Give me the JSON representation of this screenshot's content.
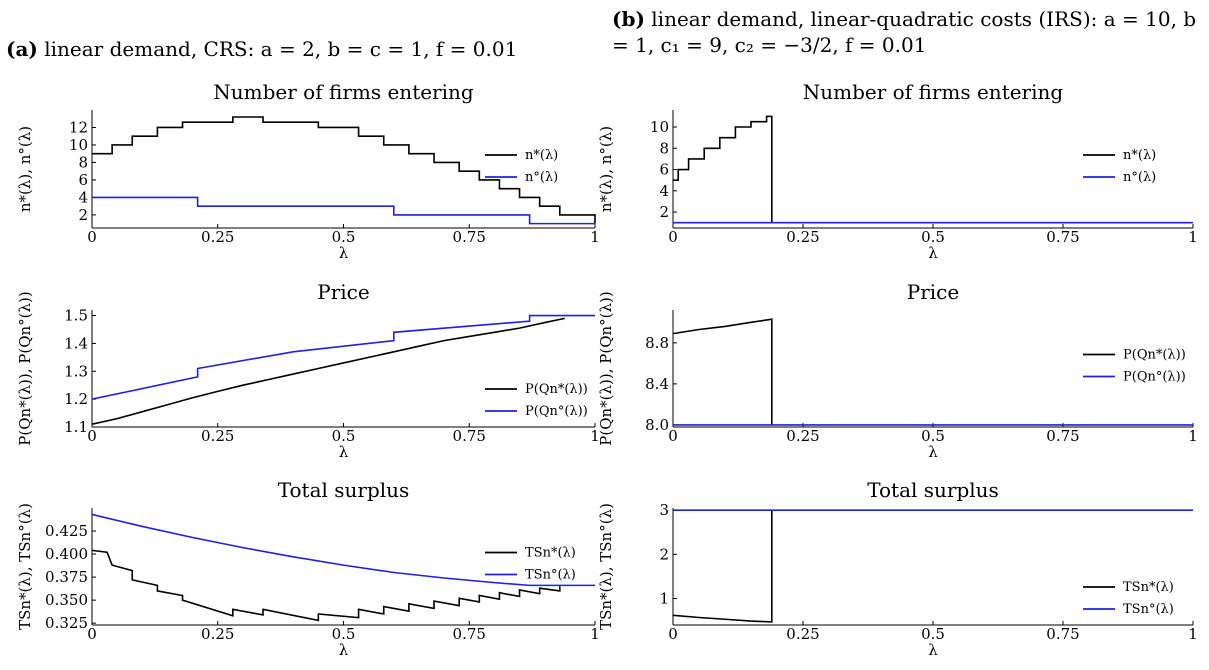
{
  "captions": {
    "a": {
      "tag": "(a)",
      "text": "linear demand, CRS: a = 2, b = c = 1, f = 0.01"
    },
    "b": {
      "tag": "(b)",
      "text": "linear demand, linear-quadratic costs (IRS): a = 10, b = 1, c₁ = 9, c₂ = −3/2, f = 0.01"
    }
  },
  "colors": {
    "star": "#000000",
    "opt": "#1f1fe6"
  },
  "chart_data": [
    {
      "id": "a-firms",
      "type": "line",
      "title": "Number of firms entering",
      "xlabel": "λ",
      "ylabel": "n*(λ),  n°(λ)",
      "xlim": [
        0,
        1
      ],
      "ylim": [
        0.5,
        14
      ],
      "xticks": [
        0,
        0.25,
        0.5,
        0.75,
        1
      ],
      "xtick_labels": [
        "0",
        "0.25",
        "0.5",
        "0.75",
        "1"
      ],
      "yticks": [
        2,
        4,
        6,
        8,
        10,
        12
      ],
      "ytick_labels": [
        "2",
        "4",
        "6",
        "8",
        "10",
        "12"
      ],
      "legend": "right",
      "legend_labels": [
        "n*(λ)",
        "n°(λ)"
      ],
      "series": [
        {
          "name": "n*(λ)",
          "color": "#000000",
          "step": true,
          "x": [
            0,
            0.04,
            0.08,
            0.13,
            0.18,
            0.28,
            0.34,
            0.45,
            0.53,
            0.58,
            0.63,
            0.68,
            0.73,
            0.77,
            0.81,
            0.85,
            0.89,
            0.93,
            1.0
          ],
          "y": [
            9,
            10,
            11,
            12,
            12.6,
            13.2,
            12.6,
            12,
            11,
            10,
            9,
            8,
            7,
            6,
            5,
            4,
            3,
            2,
            1
          ]
        },
        {
          "name": "n°(λ)",
          "color": "#1f1fe6",
          "step": true,
          "x": [
            0,
            0.21,
            0.6,
            0.87,
            1.0
          ],
          "y": [
            4,
            3,
            2,
            1,
            1
          ]
        }
      ]
    },
    {
      "id": "b-firms",
      "type": "line",
      "title": "Number of firms entering",
      "xlabel": "λ",
      "ylabel": "n*(λ),  n°(λ)",
      "xlim": [
        0,
        1
      ],
      "ylim": [
        0.5,
        11.6
      ],
      "xticks": [
        0,
        0.25,
        0.5,
        0.75,
        1
      ],
      "xtick_labels": [
        "0",
        "0.25",
        "0.5",
        "0.75",
        "1"
      ],
      "yticks": [
        2,
        4,
        6,
        8,
        10
      ],
      "ytick_labels": [
        "2",
        "4",
        "6",
        "8",
        "10"
      ],
      "legend": "right",
      "legend_labels": [
        "n*(λ)",
        "n°(λ)"
      ],
      "series": [
        {
          "name": "n*(λ)",
          "color": "#000000",
          "step": true,
          "x": [
            0,
            0.01,
            0.03,
            0.06,
            0.09,
            0.12,
            0.15,
            0.18,
            0.19,
            0.19
          ],
          "y": [
            5,
            6,
            7,
            8,
            9,
            10,
            10.5,
            11,
            11,
            1
          ]
        },
        {
          "name": "n°(λ)",
          "color": "#1f1fe6",
          "step": false,
          "x": [
            0,
            1
          ],
          "y": [
            1,
            1
          ]
        }
      ]
    },
    {
      "id": "a-price",
      "type": "line",
      "title": "Price",
      "xlabel": "λ",
      "ylabel": "P(Qn*(λ)),  P(Qn°(λ))",
      "xlim": [
        0,
        1
      ],
      "ylim": [
        1.1,
        1.52
      ],
      "xticks": [
        0,
        0.25,
        0.5,
        0.75,
        1
      ],
      "xtick_labels": [
        "0",
        "0.25",
        "0.5",
        "0.75",
        "1"
      ],
      "yticks": [
        1.1,
        1.2,
        1.3,
        1.4,
        1.5
      ],
      "ytick_labels": [
        "1.1",
        "1.2",
        "1.3",
        "1.4",
        "1.5"
      ],
      "legend": "bottom-right",
      "legend_labels": [
        "P(Qn*(λ))",
        "P(Qn°(λ))"
      ],
      "series": [
        {
          "name": "P(Qn*(λ))",
          "color": "#000000",
          "step": false,
          "x": [
            0,
            0.05,
            0.1,
            0.15,
            0.2,
            0.25,
            0.3,
            0.35,
            0.4,
            0.45,
            0.5,
            0.55,
            0.6,
            0.65,
            0.7,
            0.75,
            0.8,
            0.85,
            0.9,
            0.94
          ],
          "y": [
            1.11,
            1.13,
            1.155,
            1.18,
            1.205,
            1.228,
            1.25,
            1.27,
            1.29,
            1.31,
            1.33,
            1.35,
            1.37,
            1.39,
            1.41,
            1.425,
            1.44,
            1.455,
            1.475,
            1.49
          ]
        },
        {
          "name": "P(Qn°(λ))",
          "color": "#1f1fe6",
          "step": false,
          "x": [
            0,
            0.21,
            0.21,
            0.4,
            0.6,
            0.6,
            0.87,
            0.87,
            1.0
          ],
          "y": [
            1.2,
            1.28,
            1.31,
            1.37,
            1.41,
            1.44,
            1.48,
            1.5,
            1.5
          ]
        }
      ]
    },
    {
      "id": "b-price",
      "type": "line",
      "title": "Price",
      "xlabel": "λ",
      "ylabel": "P(Qn*(λ)),  P(Qn°(λ))",
      "xlim": [
        0,
        1
      ],
      "ylim": [
        7.98,
        9.12
      ],
      "xticks": [
        0,
        0.25,
        0.5,
        0.75,
        1
      ],
      "xtick_labels": [
        "0",
        "0.25",
        "0.5",
        "0.75",
        "1"
      ],
      "yticks": [
        8.0,
        8.4,
        8.8
      ],
      "ytick_labels": [
        "8.0",
        "8.4",
        "8.8"
      ],
      "legend": "right",
      "legend_labels": [
        "P(Qn*(λ))",
        "P(Qn°(λ))"
      ],
      "series": [
        {
          "name": "P(Qn*(λ))",
          "color": "#000000",
          "step": false,
          "x": [
            0,
            0.05,
            0.1,
            0.15,
            0.19,
            0.19
          ],
          "y": [
            8.89,
            8.93,
            8.96,
            9.0,
            9.03,
            8.0
          ]
        },
        {
          "name": "P(Qn°(λ))",
          "color": "#1f1fe6",
          "step": false,
          "x": [
            0,
            1
          ],
          "y": [
            8.0,
            8.0
          ]
        }
      ]
    },
    {
      "id": "a-surplus",
      "type": "line",
      "title": "Total surplus",
      "xlabel": "λ",
      "ylabel": "TSn*(λ),  TSn°(λ)",
      "xlim": [
        0,
        1
      ],
      "ylim": [
        0.323,
        0.45
      ],
      "xticks": [
        0,
        0.25,
        0.5,
        0.75,
        1
      ],
      "xtick_labels": [
        "0",
        "0.25",
        "0.5",
        "0.75",
        "1"
      ],
      "yticks": [
        0.325,
        0.35,
        0.375,
        0.4,
        0.425
      ],
      "ytick_labels": [
        "0.325",
        "0.350",
        "0.375",
        "0.400",
        "0.425"
      ],
      "legend": "right",
      "legend_labels": [
        "TSn*(λ)",
        "TSn°(λ)"
      ],
      "series": [
        {
          "name": "TSn*(λ)",
          "color": "#000000",
          "step": false,
          "x": [
            0,
            0.03,
            0.04,
            0.08,
            0.08,
            0.13,
            0.13,
            0.18,
            0.18,
            0.28,
            0.28,
            0.34,
            0.34,
            0.45,
            0.45,
            0.53,
            0.53,
            0.58,
            0.58,
            0.63,
            0.63,
            0.68,
            0.68,
            0.73,
            0.73,
            0.77,
            0.77,
            0.81,
            0.81,
            0.85,
            0.85,
            0.89,
            0.89,
            0.93,
            0.93
          ],
          "y": [
            0.404,
            0.402,
            0.388,
            0.382,
            0.372,
            0.366,
            0.36,
            0.355,
            0.35,
            0.333,
            0.34,
            0.334,
            0.34,
            0.328,
            0.335,
            0.331,
            0.34,
            0.335,
            0.343,
            0.338,
            0.346,
            0.341,
            0.349,
            0.344,
            0.352,
            0.348,
            0.355,
            0.351,
            0.358,
            0.354,
            0.361,
            0.357,
            0.363,
            0.36,
            0.365
          ]
        },
        {
          "name": "TSn°(λ)",
          "color": "#1f1fe6",
          "step": false,
          "x": [
            0,
            0.1,
            0.2,
            0.3,
            0.4,
            0.5,
            0.6,
            0.7,
            0.8,
            0.87,
            1.0
          ],
          "y": [
            0.443,
            0.43,
            0.418,
            0.407,
            0.397,
            0.388,
            0.38,
            0.374,
            0.369,
            0.366,
            0.366
          ]
        }
      ]
    },
    {
      "id": "b-surplus",
      "type": "line",
      "title": "Total surplus",
      "xlabel": "λ",
      "ylabel": "TSn*(λ),  TSn°(λ)",
      "xlim": [
        0,
        1
      ],
      "ylim": [
        0.4,
        3.05
      ],
      "xticks": [
        0,
        0.25,
        0.5,
        0.75,
        1
      ],
      "xtick_labels": [
        "0",
        "0.25",
        "0.5",
        "0.75",
        "1"
      ],
      "yticks": [
        1,
        2,
        3
      ],
      "ytick_labels": [
        "1",
        "2",
        "3"
      ],
      "legend": "bottom-right",
      "legend_labels": [
        "TSn*(λ)",
        "TSn°(λ)"
      ],
      "series": [
        {
          "name": "TSn*(λ)",
          "color": "#000000",
          "step": false,
          "x": [
            0,
            0.05,
            0.1,
            0.15,
            0.19,
            0.19
          ],
          "y": [
            0.62,
            0.57,
            0.53,
            0.49,
            0.47,
            3.0
          ]
        },
        {
          "name": "TSn°(λ)",
          "color": "#1f1fe6",
          "step": false,
          "x": [
            0,
            1
          ],
          "y": [
            3.0,
            3.0
          ]
        }
      ]
    }
  ]
}
